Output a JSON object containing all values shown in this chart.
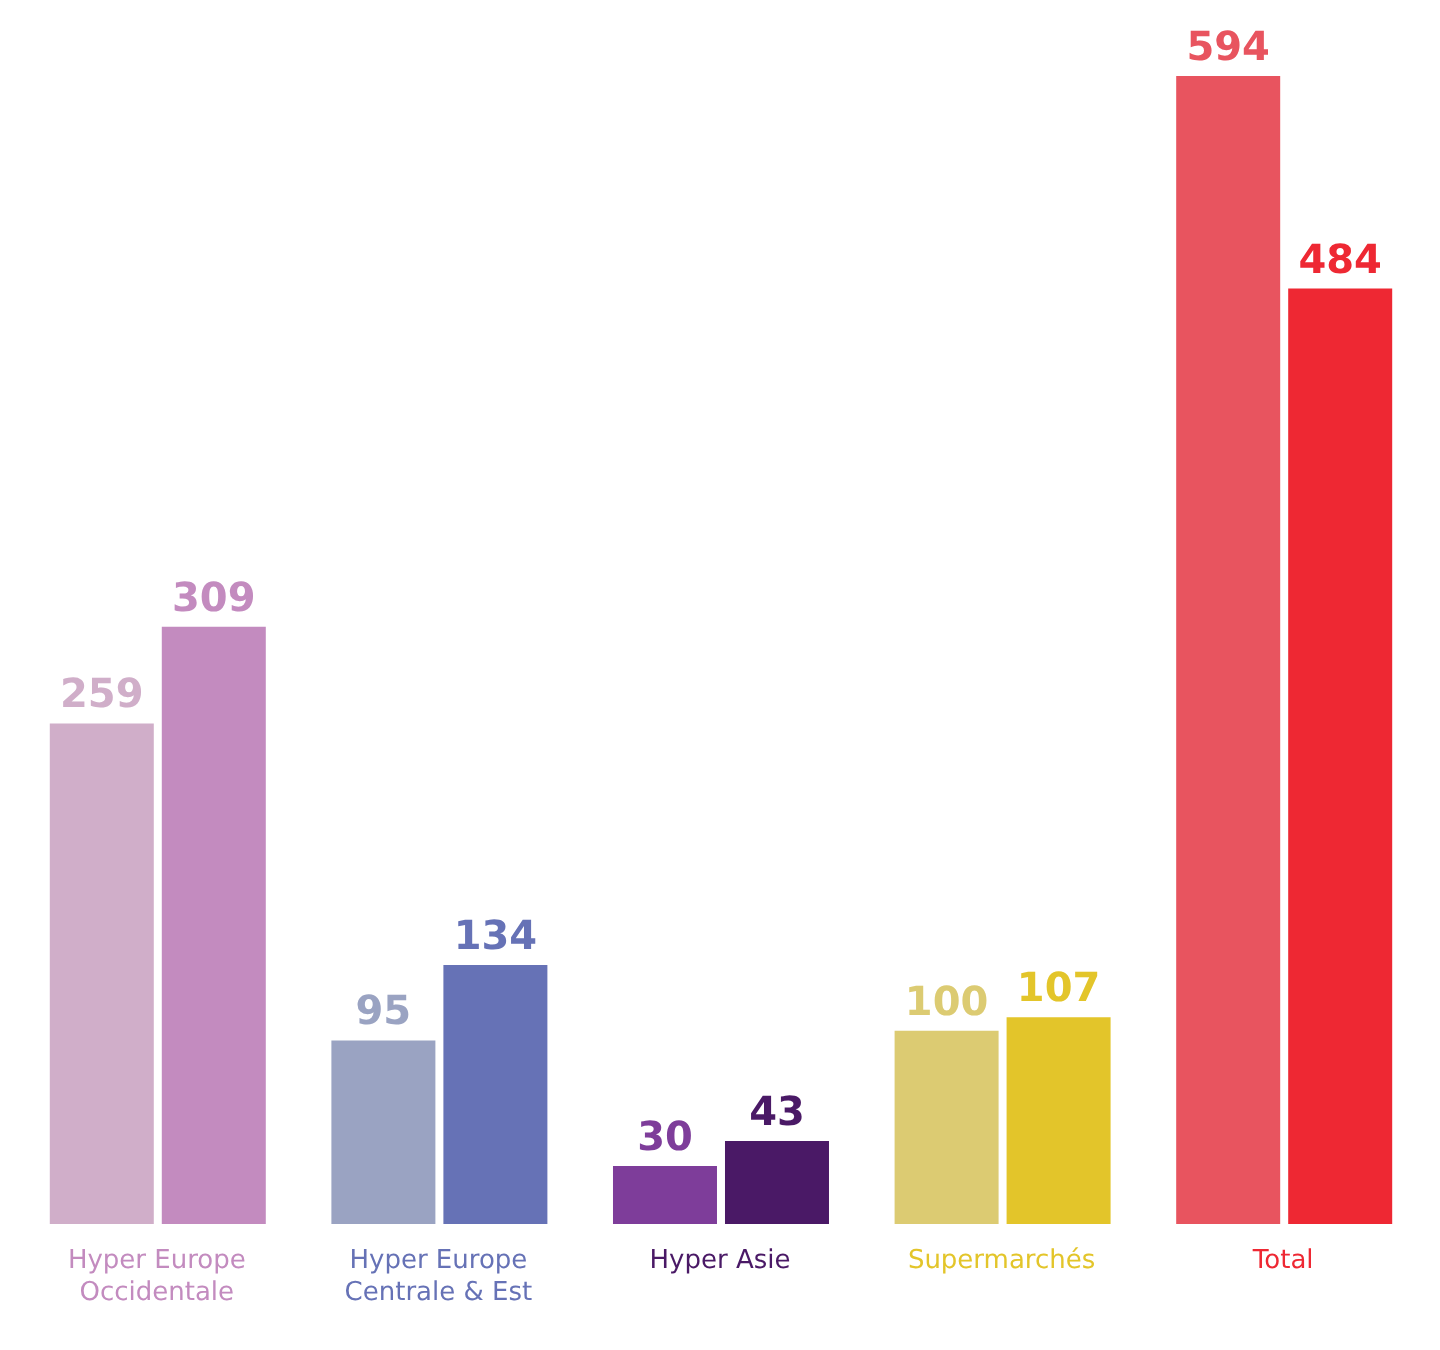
{
  "chart_data": {
    "type": "bar",
    "categories": [
      "Hyper Europe Occidentale",
      "Hyper Europe Centrale & Est",
      "Hyper Asie",
      "Supermarchés",
      "Total"
    ],
    "series": [
      {
        "colors": [
          "#d0aec9",
          "#9aa3c2",
          "#7e3d9a",
          "#dccb72",
          "#e8545f"
        ],
        "values": [
          259,
          95,
          30,
          100,
          594
        ]
      },
      {
        "colors": [
          "#c38bbf",
          "#6672b6",
          "#4a1966",
          "#e3c52a",
          "#ee2833"
        ],
        "values": [
          309,
          134,
          43,
          107,
          484
        ]
      }
    ],
    "data_labels": true,
    "grid": false,
    "legend": false
  }
}
